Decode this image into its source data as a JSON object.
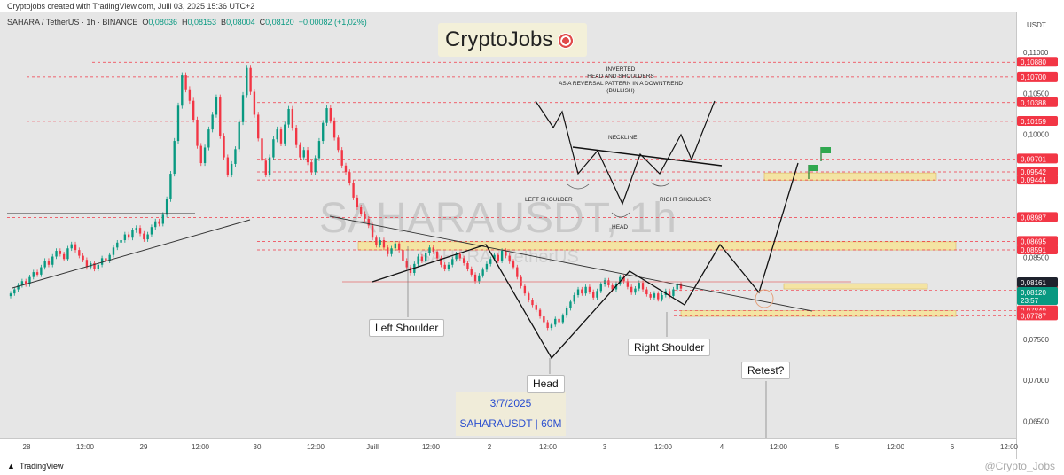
{
  "header": {
    "created_note": "Cryptojobs created with TradingView.com, Juill 03, 2025 15:36 UTC+2",
    "symbol_line": "SAHARA / TetherUS · 1h · BINANCE",
    "ohlc": {
      "o_label": "O",
      "o": "0,08036",
      "h_label": "H",
      "h": "0,08153",
      "l_label": "B",
      "l": "0,08004",
      "c_label": "C",
      "c": "0,08120",
      "change": "+0,00082 (+1,02%)"
    },
    "currency": "USDT"
  },
  "brand": {
    "name": "CryptoJobs",
    "icon": "target-icon"
  },
  "watermark": {
    "symbol": "SAHARAUSDT, 1h",
    "pair": "SAHARA / TetherUS"
  },
  "info_box": {
    "date": "3/7/2025",
    "symbol": "SAHARAUSDT | 60M"
  },
  "annotations": {
    "left_shoulder": "Left Shoulder",
    "head": "Head",
    "right_shoulder": "Right Shoulder",
    "retest": "Retest?",
    "schematic_title": [
      "INVERTED",
      "HEAD AND SHOULDERS",
      "AS A REVERSAL PATTERN IN A DOWNTREND",
      "(BULLISH)"
    ],
    "schematic_neckline": "NECKLINE",
    "schematic_left": "LEFT SHOULDER",
    "schematic_right": "RIGHT SHOULDER",
    "schematic_head": "HEAD"
  },
  "footer": {
    "brand": "TradingView",
    "handle": "@Crypto_Jobs"
  },
  "colors": {
    "up": "#089981",
    "down": "#f23645",
    "level_badge": "#f23645",
    "current_badge": "#089981",
    "zone": "#f6e49c",
    "background": "#e6e6e6"
  },
  "chart_data": {
    "type": "candlestick",
    "x_tick_labels": [
      "28",
      "12:00",
      "29",
      "12:00",
      "30",
      "12:00",
      "Juill",
      "12:00",
      "2",
      "12:00",
      "3",
      "12:00",
      "4",
      "12:00",
      "5",
      "12:00",
      "6",
      "12:00"
    ],
    "y_tick_labels": [
      "0,11000",
      "0,10500",
      "0,10000",
      "0,09500",
      "0,09000",
      "0,08500",
      "0,08000",
      "0,07500",
      "0,07000",
      "0,06500"
    ],
    "ylim": [
      0.063,
      0.1125
    ],
    "horizontal_levels": [
      0.1088,
      0.107,
      0.10388,
      0.10159,
      0.09701,
      0.09542,
      0.09444,
      0.08987,
      0.08695,
      0.08591,
      0.08099,
      0.07849,
      0.07787
    ],
    "level_labels": [
      "0,10880",
      "0,10700",
      "0,10388",
      "0,10159",
      "0,09701",
      "0,09542",
      "0,09444",
      "0,08987",
      "0,08695",
      "0,08591",
      "0,08099",
      "0,07849",
      "0,07787"
    ],
    "current_price": {
      "price": "0,08161",
      "last": "0,08120",
      "countdown": "23:57"
    },
    "zones": [
      {
        "from": 0.0944,
        "to": 0.0953
      },
      {
        "from": 0.0859,
        "to": 0.0869
      },
      {
        "from": 0.0813,
        "to": 0.0818
      },
      {
        "from": 0.0778,
        "to": 0.0785
      }
    ],
    "candles_close": [
      0.0806,
      0.0811,
      0.0816,
      0.0821,
      0.0817,
      0.0826,
      0.0832,
      0.0829,
      0.0838,
      0.0846,
      0.0841,
      0.0851,
      0.0858,
      0.0854,
      0.0848,
      0.0861,
      0.0866,
      0.0859,
      0.0852,
      0.0847,
      0.0838,
      0.0843,
      0.0836,
      0.0841,
      0.0849,
      0.0846,
      0.0853,
      0.0862,
      0.0868,
      0.0871,
      0.0878,
      0.0874,
      0.0883,
      0.0886,
      0.0879,
      0.0872,
      0.0878,
      0.0887,
      0.0894,
      0.0891,
      0.0902,
      0.0921,
      0.0952,
      0.0992,
      0.1035,
      0.1072,
      0.1055,
      0.1041,
      0.1018,
      0.0986,
      0.0965,
      0.0984,
      0.1006,
      0.1024,
      0.1045,
      0.0998,
      0.0972,
      0.0951,
      0.0964,
      0.0982,
      0.1015,
      0.1048,
      0.1081,
      0.1052,
      0.1024,
      0.0995,
      0.0968,
      0.0951,
      0.0972,
      0.0994,
      0.1006,
      0.0989,
      0.1012,
      0.1031,
      0.1008,
      0.0987,
      0.0972,
      0.0981,
      0.0966,
      0.0954,
      0.0971,
      0.0992,
      0.1014,
      0.1032,
      0.1017,
      0.0996,
      0.0981,
      0.0962,
      0.0954,
      0.0941,
      0.0923,
      0.0911,
      0.0903,
      0.0897,
      0.0889,
      0.0874,
      0.0865,
      0.0871,
      0.0862,
      0.0854,
      0.0861,
      0.0867,
      0.0859,
      0.0846,
      0.0838,
      0.0831,
      0.0842,
      0.0851,
      0.0846,
      0.0855,
      0.0862,
      0.0857,
      0.0849,
      0.0841,
      0.0836,
      0.0841,
      0.0848,
      0.0854,
      0.0849,
      0.0843,
      0.0836,
      0.0829,
      0.0821,
      0.0828,
      0.0835,
      0.0842,
      0.0848,
      0.0853,
      0.0846,
      0.0858,
      0.0852,
      0.0845,
      0.0838,
      0.0826,
      0.0815,
      0.0806,
      0.0798,
      0.0792,
      0.0786,
      0.0778,
      0.0771,
      0.0764,
      0.0768,
      0.0775,
      0.0771,
      0.0779,
      0.0788,
      0.0796,
      0.0804,
      0.0811,
      0.0806,
      0.0814,
      0.0808,
      0.0801,
      0.0809,
      0.0817,
      0.0822,
      0.0816,
      0.0811,
      0.0818,
      0.0826,
      0.0821,
      0.0814,
      0.0807,
      0.0812,
      0.0819,
      0.0811,
      0.0805,
      0.0801,
      0.0806,
      0.0799,
      0.0804,
      0.0809,
      0.0803,
      0.0811,
      0.0817,
      0.0812
    ]
  }
}
